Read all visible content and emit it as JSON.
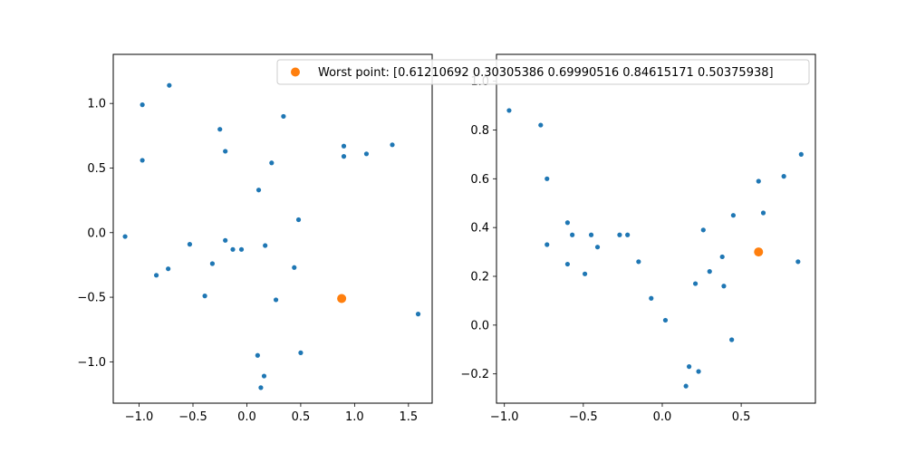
{
  "chart_data": [
    {
      "type": "scatter",
      "xlim": [
        -1.24,
        1.72
      ],
      "ylim": [
        -1.32,
        1.38
      ],
      "x_ticks": [
        -1.0,
        -0.5,
        0.0,
        0.5,
        1.0,
        1.5
      ],
      "x_tick_labels": [
        "−1.0",
        "−0.5",
        "0.0",
        "0.5",
        "1.0",
        "1.5"
      ],
      "y_ticks": [
        -1.0,
        -0.5,
        0.0,
        0.5,
        1.0
      ],
      "y_tick_labels": [
        "−1.0",
        "−0.5",
        "0.0",
        "0.5",
        "1.0"
      ],
      "series": [
        {
          "color": "#1f77b4",
          "marker": "small-dot",
          "points": [
            [
              -0.72,
              1.14
            ],
            [
              -0.97,
              0.99
            ],
            [
              -0.97,
              0.56
            ],
            [
              -1.13,
              -0.03
            ],
            [
              -0.84,
              -0.33
            ],
            [
              -0.73,
              -0.28
            ],
            [
              -0.53,
              -0.09
            ],
            [
              -0.39,
              -0.49
            ],
            [
              -0.32,
              -0.24
            ],
            [
              -0.25,
              0.8
            ],
            [
              -0.2,
              0.63
            ],
            [
              -0.2,
              -0.06
            ],
            [
              -0.13,
              -0.13
            ],
            [
              -0.05,
              -0.13
            ],
            [
              0.11,
              0.33
            ],
            [
              0.17,
              -0.1
            ],
            [
              0.23,
              0.54
            ],
            [
              0.34,
              0.9
            ],
            [
              0.48,
              0.1
            ],
            [
              0.44,
              -0.27
            ],
            [
              0.27,
              -0.52
            ],
            [
              0.5,
              -0.93
            ],
            [
              0.1,
              -0.95
            ],
            [
              0.16,
              -1.11
            ],
            [
              0.13,
              -1.2
            ],
            [
              0.9,
              0.67
            ],
            [
              0.9,
              0.59
            ],
            [
              1.11,
              0.61
            ],
            [
              1.35,
              0.68
            ],
            [
              1.59,
              -0.63
            ]
          ]
        },
        {
          "color": "#ff7f0e",
          "marker": "large-dot",
          "points": [
            [
              0.88,
              -0.51
            ]
          ]
        }
      ]
    },
    {
      "type": "scatter",
      "xlim": [
        -1.05,
        0.97
      ],
      "ylim": [
        -0.32,
        1.11
      ],
      "x_ticks": [
        -1.0,
        -0.5,
        0.0,
        0.5
      ],
      "x_tick_labels": [
        "−1.0",
        "−0.5",
        "0.0",
        "0.5"
      ],
      "y_ticks": [
        -0.2,
        0.0,
        0.2,
        0.4,
        0.6,
        0.8,
        1.0
      ],
      "y_tick_labels": [
        "−0.2",
        "0.0",
        "0.2",
        "0.4",
        "0.6",
        "0.8",
        "1.0"
      ],
      "series": [
        {
          "color": "#1f77b4",
          "marker": "small-dot",
          "points": [
            [
              -0.97,
              0.88
            ],
            [
              -0.77,
              0.82
            ],
            [
              -0.73,
              0.6
            ],
            [
              -0.73,
              0.33
            ],
            [
              -0.6,
              0.42
            ],
            [
              -0.57,
              0.37
            ],
            [
              -0.6,
              0.25
            ],
            [
              -0.49,
              0.21
            ],
            [
              -0.45,
              0.37
            ],
            [
              -0.41,
              0.32
            ],
            [
              -0.27,
              0.37
            ],
            [
              -0.22,
              0.37
            ],
            [
              -0.15,
              0.26
            ],
            [
              -0.07,
              0.11
            ],
            [
              0.02,
              0.02
            ],
            [
              0.15,
              -0.25
            ],
            [
              0.17,
              -0.17
            ],
            [
              0.21,
              0.17
            ],
            [
              0.23,
              -0.19
            ],
            [
              0.26,
              0.39
            ],
            [
              0.3,
              0.22
            ],
            [
              0.38,
              0.28
            ],
            [
              0.39,
              0.16
            ],
            [
              0.44,
              -0.06
            ],
            [
              0.45,
              0.45
            ],
            [
              0.61,
              0.59
            ],
            [
              0.64,
              0.46
            ],
            [
              0.77,
              0.61
            ],
            [
              0.86,
              0.26
            ],
            [
              0.88,
              0.7
            ]
          ]
        },
        {
          "color": "#ff7f0e",
          "marker": "large-dot",
          "points": [
            [
              0.61,
              0.3
            ]
          ]
        }
      ]
    }
  ],
  "legend": {
    "label": "Worst point: [0.61210692 0.30305386 0.69990516 0.84615171 0.50375938]",
    "marker_color": "#ff7f0e"
  }
}
